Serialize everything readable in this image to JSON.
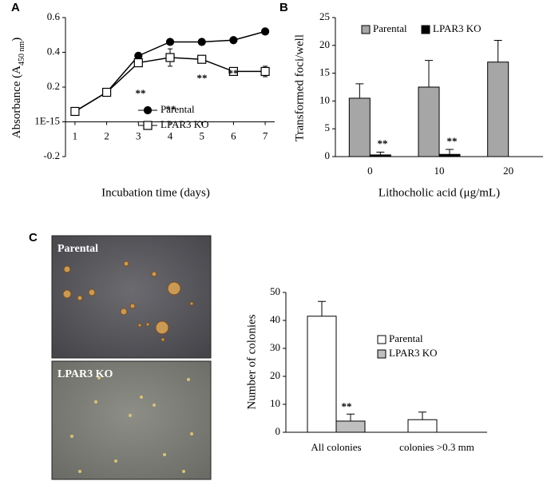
{
  "chart_data": [
    {
      "type": "line",
      "panel_label": "A",
      "y_label": "Absorbance (A",
      "y_label_sub": "450 nm",
      "y_label_end": ")",
      "x_label": "Incubation time (days)",
      "x": [
        1,
        2,
        3,
        4,
        5,
        6,
        7
      ],
      "series": [
        {
          "name": "Parental",
          "color": "#000000",
          "marker": "circle",
          "marker_fill": "#000000",
          "values": [
            0.06,
            0.17,
            0.38,
            0.46,
            0.46,
            0.47,
            0.52
          ]
        },
        {
          "name": "LPAR3 KO",
          "color": "#000000",
          "marker": "square",
          "marker_fill": "#ffffff",
          "values": [
            0.06,
            0.17,
            0.34,
            0.37,
            0.36,
            0.29,
            0.29
          ],
          "errors": [
            0.01,
            0.01,
            0.02,
            0.05,
            0.01,
            0.01,
            0.03
          ]
        }
      ],
      "xlim": [
        0.7,
        7.3
      ],
      "xticks": [
        1,
        2,
        3,
        4,
        5,
        6,
        7
      ],
      "ylim": [
        -0.2,
        0.6
      ],
      "yticks": [
        -0.2,
        {
          "value": 1e-15,
          "label": "1E-15"
        },
        0.2,
        0.4,
        0.6
      ],
      "annotations": [
        "**",
        "**",
        "**",
        "**"
      ],
      "grid": false
    },
    {
      "type": "bar",
      "panel_label": "B",
      "y_label": "Transformed foci/well",
      "x_label": "Lithocholic acid (μg/mL)",
      "categories": [
        "0",
        "10",
        "20"
      ],
      "series": [
        {
          "name": "Parental",
          "color": "#a6a6a6",
          "values": [
            10.5,
            12.5,
            17
          ],
          "errors": [
            2.6,
            4.8,
            3.9
          ]
        },
        {
          "name": "LPAR3 KO",
          "color": "#000000",
          "values": [
            0.3,
            0.4,
            null
          ],
          "errors": [
            0.5,
            0.9,
            null
          ]
        }
      ],
      "ylim": [
        0,
        25
      ],
      "yticks": [
        0,
        5,
        10,
        15,
        20,
        25
      ],
      "annotations": [
        "**",
        "**"
      ],
      "grid": false
    },
    {
      "type": "bar",
      "panel_label": "C",
      "image_labels": [
        "Parental",
        "LPAR3 KO"
      ],
      "y_label": "Number of colonies",
      "categories": [
        "All colonies",
        "colonies >0.3 mm"
      ],
      "series": [
        {
          "name": "Parental",
          "color": "#ffffff",
          "values": [
            41.5,
            4.5
          ],
          "errors": [
            5.3,
            2.7
          ]
        },
        {
          "name": "LPAR3 KO",
          "color": "#bfbfbf",
          "values": [
            4,
            0
          ],
          "errors": [
            2.5,
            null
          ]
        }
      ],
      "ylim": [
        0,
        50
      ],
      "yticks": [
        0,
        10,
        20,
        30,
        40,
        50
      ],
      "annotations": [
        "**"
      ],
      "grid": false
    }
  ]
}
